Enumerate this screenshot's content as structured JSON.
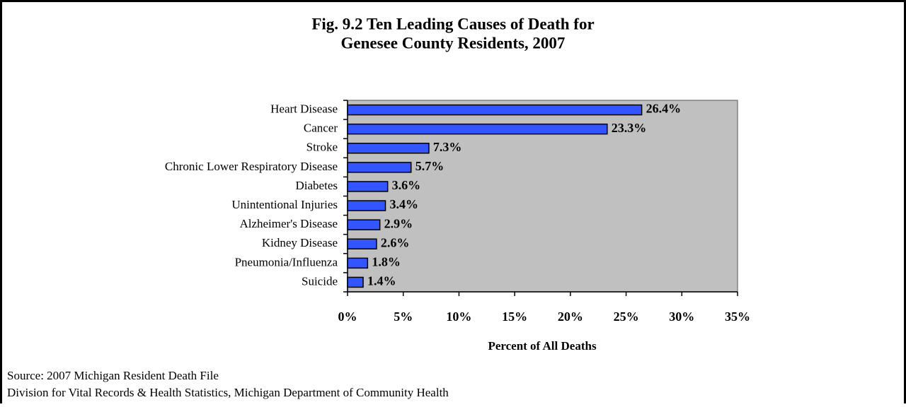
{
  "chart_data": {
    "type": "bar",
    "orientation": "horizontal",
    "title": [
      "Fig. 9.2 Ten Leading Causes of Death for",
      "Genesee County Residents, 2007"
    ],
    "categories": [
      "Heart Disease",
      "Cancer",
      "Stroke",
      "Chronic Lower Respiratory Disease",
      "Diabetes",
      "Unintentional Injuries",
      "Alzheimer's Disease",
      "Kidney Disease",
      "Pneumonia/Influenza",
      "Suicide"
    ],
    "values": [
      26.4,
      23.3,
      7.3,
      5.7,
      3.6,
      3.4,
      2.9,
      2.6,
      1.8,
      1.4
    ],
    "value_labels": [
      "26.4%",
      "23.3%",
      "7.3%",
      "5.7%",
      "3.6%",
      "3.4%",
      "2.9%",
      "2.6%",
      "1.8%",
      "1.4%"
    ],
    "color": "#3355ff",
    "xlim": [
      0,
      35
    ],
    "xticks": [
      {
        "value": 0,
        "label": "0%"
      },
      {
        "value": 5,
        "label": "5%"
      },
      {
        "value": 10,
        "label": "10%"
      },
      {
        "value": 15,
        "label": "15%"
      },
      {
        "value": 20,
        "label": "20%"
      },
      {
        "value": 25,
        "label": "25%"
      },
      {
        "value": 30,
        "label": "30%"
      },
      {
        "value": 35,
        "label": "35%"
      }
    ],
    "xlabel": "Percent of All Deaths",
    "grid": false,
    "source": [
      "Source: 2007 Michigan Resident Death File",
      "Division for Vital Records & Health Statistics, Michigan Department of Community Health"
    ]
  }
}
